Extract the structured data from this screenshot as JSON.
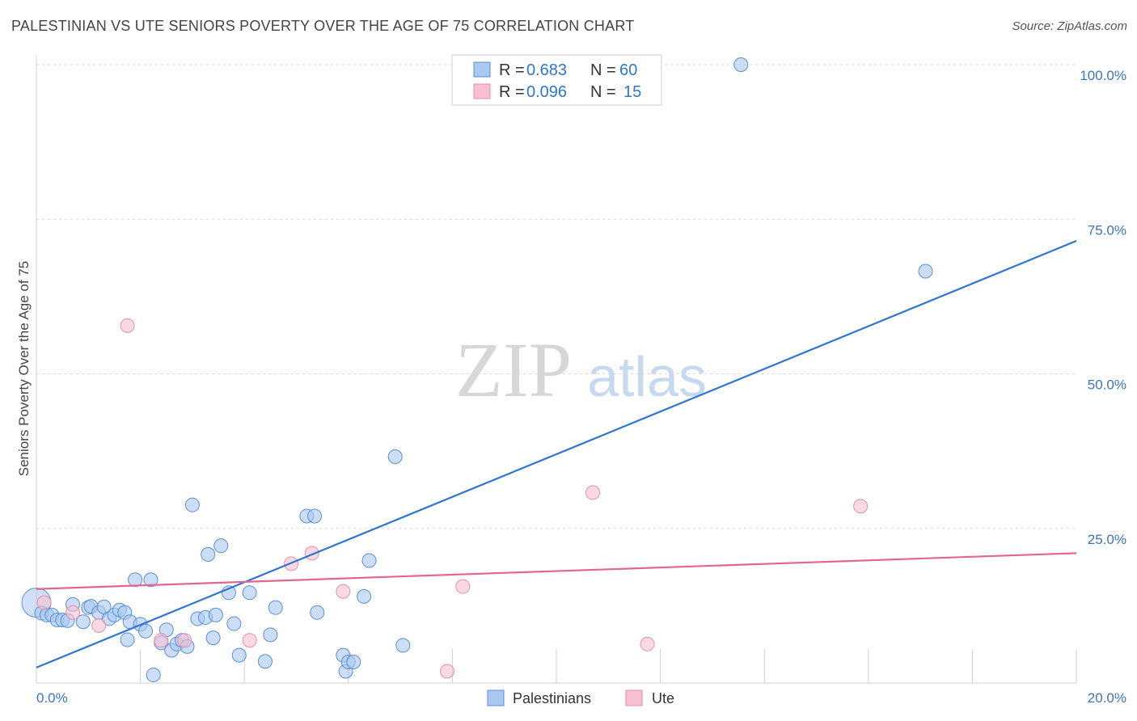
{
  "title": "PALESTINIAN VS UTE SENIORS POVERTY OVER THE AGE OF 75 CORRELATION CHART",
  "source": "Source: ZipAtlas.com",
  "watermark": {
    "zip": "ZIP",
    "atlas": "atlas"
  },
  "colors": {
    "blue_fill": "#a9c8f0",
    "blue_stroke": "#5b8fd6",
    "blue_line": "#2f75d1",
    "pink_fill": "#f7c0d0",
    "pink_stroke": "#e690aa",
    "pink_line": "#e06790",
    "tick_text": "#3b73c4",
    "grid": "#d9d9d9"
  },
  "legend": {
    "rows": [
      {
        "r_label": "R =",
        "r_value": "0.683",
        "n_label": "N =",
        "n_value": "60"
      },
      {
        "r_label": "R =",
        "r_value": "0.096",
        "n_label": "N =",
        "n_value": "15"
      }
    ]
  },
  "chart_data": {
    "type": "scatter",
    "title": "PALESTINIAN VS UTE SENIORS POVERTY OVER THE AGE OF 75 CORRELATION CHART",
    "xlabel": "",
    "ylabel": "Seniors Poverty Over the Age of 75",
    "xlim": [
      0,
      20
    ],
    "ylim": [
      0,
      100
    ],
    "x_tick_labels": [
      "0.0%",
      "20.0%"
    ],
    "y_ticks": [
      25,
      50,
      75,
      100
    ],
    "y_tick_labels": [
      "25.0%",
      "50.0%",
      "75.0%",
      "100.0%"
    ],
    "series": [
      {
        "name": "Palestinians",
        "color": "#a9c8f0",
        "trend": {
          "x": [
            0,
            20
          ],
          "y": [
            2.5,
            71.5
          ]
        },
        "points": [
          {
            "x": 0.0,
            "y": 13.0,
            "big": true
          },
          {
            "x": 0.1,
            "y": 11.3
          },
          {
            "x": 0.2,
            "y": 11.0
          },
          {
            "x": 0.3,
            "y": 11.0
          },
          {
            "x": 0.4,
            "y": 10.2
          },
          {
            "x": 0.5,
            "y": 10.2
          },
          {
            "x": 0.6,
            "y": 10.1
          },
          {
            "x": 0.7,
            "y": 12.7
          },
          {
            "x": 0.9,
            "y": 9.9
          },
          {
            "x": 1.0,
            "y": 12.2
          },
          {
            "x": 1.05,
            "y": 12.4
          },
          {
            "x": 1.2,
            "y": 11.4
          },
          {
            "x": 1.3,
            "y": 12.3
          },
          {
            "x": 1.4,
            "y": 10.4
          },
          {
            "x": 1.5,
            "y": 11.0
          },
          {
            "x": 1.6,
            "y": 11.8
          },
          {
            "x": 1.7,
            "y": 11.4
          },
          {
            "x": 1.75,
            "y": 7.0
          },
          {
            "x": 1.8,
            "y": 9.9
          },
          {
            "x": 1.9,
            "y": 16.7
          },
          {
            "x": 2.0,
            "y": 9.5
          },
          {
            "x": 2.1,
            "y": 8.4
          },
          {
            "x": 2.2,
            "y": 16.7
          },
          {
            "x": 2.25,
            "y": 1.3
          },
          {
            "x": 2.4,
            "y": 6.5
          },
          {
            "x": 2.5,
            "y": 8.6
          },
          {
            "x": 2.6,
            "y": 5.3
          },
          {
            "x": 2.7,
            "y": 6.3
          },
          {
            "x": 2.8,
            "y": 6.9
          },
          {
            "x": 2.9,
            "y": 5.9
          },
          {
            "x": 3.0,
            "y": 28.8
          },
          {
            "x": 3.1,
            "y": 10.4
          },
          {
            "x": 3.25,
            "y": 10.6
          },
          {
            "x": 3.3,
            "y": 20.8
          },
          {
            "x": 3.4,
            "y": 7.3
          },
          {
            "x": 3.45,
            "y": 11.0
          },
          {
            "x": 3.55,
            "y": 22.2
          },
          {
            "x": 3.7,
            "y": 14.6
          },
          {
            "x": 3.8,
            "y": 9.6
          },
          {
            "x": 3.9,
            "y": 4.5
          },
          {
            "x": 4.1,
            "y": 14.6
          },
          {
            "x": 4.4,
            "y": 3.5
          },
          {
            "x": 4.5,
            "y": 7.8
          },
          {
            "x": 4.6,
            "y": 12.2
          },
          {
            "x": 5.2,
            "y": 27.0
          },
          {
            "x": 5.35,
            "y": 27.0
          },
          {
            "x": 5.4,
            "y": 11.4
          },
          {
            "x": 5.9,
            "y": 4.5
          },
          {
            "x": 5.95,
            "y": 1.9
          },
          {
            "x": 6.0,
            "y": 3.4
          },
          {
            "x": 6.1,
            "y": 3.4
          },
          {
            "x": 6.3,
            "y": 14.0
          },
          {
            "x": 6.4,
            "y": 19.8
          },
          {
            "x": 6.9,
            "y": 36.6
          },
          {
            "x": 7.05,
            "y": 6.1
          },
          {
            "x": 13.55,
            "y": 100.0
          },
          {
            "x": 17.1,
            "y": 66.6
          }
        ]
      },
      {
        "name": "Ute",
        "color": "#f7c0d0",
        "trend": {
          "x": [
            0,
            20
          ],
          "y": [
            15.2,
            21.0
          ]
        },
        "points": [
          {
            "x": 0.15,
            "y": 13.0
          },
          {
            "x": 0.7,
            "y": 11.4
          },
          {
            "x": 1.2,
            "y": 9.3
          },
          {
            "x": 1.75,
            "y": 57.8
          },
          {
            "x": 2.4,
            "y": 6.9
          },
          {
            "x": 2.85,
            "y": 6.9
          },
          {
            "x": 4.1,
            "y": 6.9
          },
          {
            "x": 4.9,
            "y": 19.3
          },
          {
            "x": 5.3,
            "y": 21.0
          },
          {
            "x": 5.9,
            "y": 14.8
          },
          {
            "x": 7.9,
            "y": 1.9
          },
          {
            "x": 8.2,
            "y": 15.6
          },
          {
            "x": 10.7,
            "y": 30.8
          },
          {
            "x": 11.75,
            "y": 6.3
          },
          {
            "x": 15.85,
            "y": 28.6
          }
        ]
      }
    ]
  }
}
